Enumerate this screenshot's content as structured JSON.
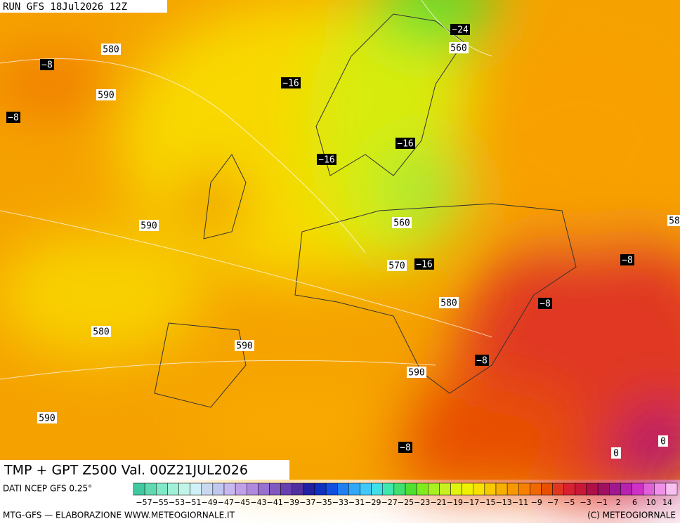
{
  "header": "RUN GFS 18Jul2026 12Z",
  "title": "TMP + GPT Z500 Val. 00Z21JUL2026",
  "source": "DATI NCEP GFS 0.25°",
  "credit": "MTG-GFS — ELABORAZIONE WWW.METEOGIORNALE.IT",
  "copyright": "(C) METEOGIORNALE",
  "map_labels": [
    "−24",
    "560",
    "580",
    "−8",
    "590",
    "−16",
    "−8",
    "−16",
    "−16",
    "590",
    "560",
    "570",
    "−16",
    "−8",
    "580",
    "−8",
    "580",
    "590",
    "−8",
    "590",
    "590",
    "−8",
    "0",
    "0",
    "58"
  ],
  "legend": {
    "ticks": [
      "−57",
      "−55",
      "−53",
      "−51",
      "−49",
      "−47",
      "−45",
      "−43",
      "−41",
      "−39",
      "−37",
      "−35",
      "−33",
      "−31",
      "−29",
      "−27",
      "−25",
      "−23",
      "−21",
      "−19",
      "−17",
      "−15",
      "−13",
      "−11",
      "−9",
      "−7",
      "−5",
      "−3",
      "−1",
      "2",
      "6",
      "10",
      "14"
    ],
    "colors": [
      "#40c8a0",
      "#60d8b0",
      "#80e8c8",
      "#a0f0d8",
      "#c0f4e8",
      "#d0f0f8",
      "#c8d8f0",
      "#c0c8f0",
      "#c8b8f0",
      "#c0a0e8",
      "#b088e0",
      "#9870d0",
      "#8058c0",
      "#6840b0",
      "#5030a0",
      "#2020a0",
      "#1030c0",
      "#1050e0",
      "#2080f0",
      "#30a8f8",
      "#40c8f8",
      "#40e0e8",
      "#40e8b0",
      "#40e070",
      "#50e030",
      "#80ec20",
      "#a8f020",
      "#c8f020",
      "#e0f410",
      "#f0f000",
      "#f8e000",
      "#f8c800",
      "#f8b000",
      "#f89800",
      "#f88000",
      "#f06800",
      "#e85000",
      "#e03820",
      "#d82030",
      "#c81838",
      "#b01048",
      "#a01060",
      "#a01890",
      "#b820b0",
      "#d030c8",
      "#e060d8",
      "#f090e8",
      "#f8c0f0"
    ]
  }
}
